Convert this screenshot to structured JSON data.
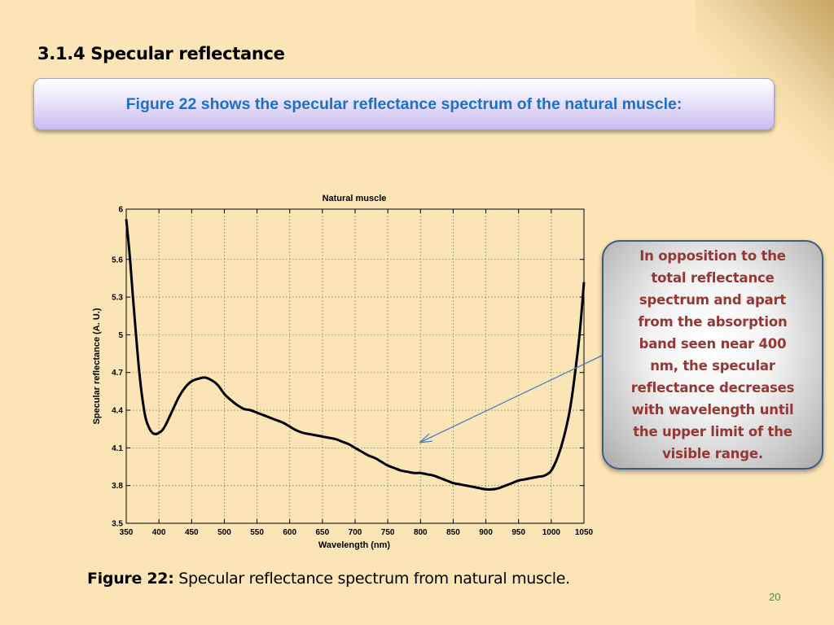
{
  "slide": {
    "title": "3.1.4 Specular reflectance",
    "banner_text": "Figure 22 shows the specular reflectance spectrum of the natural muscle:",
    "callout_text": "In opposition to the total reflectance spectrum and apart from the absorption band seen near 400 nm, the specular reflectance decreases with wavelength until the upper limit of the visible range.",
    "caption_label": "Figure 22:",
    "caption_text": " Specular reflectance spectrum from natural muscle.",
    "page_number": "20"
  },
  "colors": {
    "background": "#fbe5b6",
    "banner_text": "#1f6fc8",
    "callout_text": "#953735",
    "arrow": "#4f7fc0",
    "curve": "#000000"
  },
  "chart_data": {
    "type": "line",
    "title": "Natural muscle",
    "xlabel": "Wavelength (nm)",
    "ylabel": "Specular reflectance (A. U.)",
    "xlim": [
      350,
      1050
    ],
    "ylim": [
      3.5,
      6
    ],
    "xticks": [
      350,
      400,
      450,
      500,
      550,
      600,
      650,
      700,
      750,
      800,
      850,
      900,
      950,
      1000,
      1050
    ],
    "yticks": [
      "3.5",
      "3.8",
      "4.1",
      "4.4",
      "4.7",
      "5",
      "5.3",
      "5.6",
      "6"
    ],
    "grid": true,
    "series": [
      {
        "x": [
          350,
          355,
          360,
          365,
          370,
          375,
          380,
          385,
          390,
          395,
          400,
          405,
          410,
          420,
          430,
          440,
          450,
          460,
          470,
          480,
          490,
          500,
          510,
          520,
          530,
          540,
          550,
          560,
          570,
          580,
          590,
          600,
          610,
          620,
          630,
          640,
          650,
          660,
          670,
          680,
          690,
          700,
          710,
          720,
          730,
          740,
          750,
          760,
          770,
          780,
          790,
          800,
          810,
          820,
          830,
          840,
          850,
          860,
          870,
          880,
          890,
          900,
          910,
          920,
          930,
          940,
          950,
          960,
          970,
          980,
          990,
          1000,
          1010,
          1020,
          1030,
          1040,
          1045,
          1050
        ],
        "y": [
          5.92,
          5.65,
          5.32,
          5.0,
          4.7,
          4.48,
          4.33,
          4.26,
          4.22,
          4.21,
          4.22,
          4.24,
          4.28,
          4.39,
          4.5,
          4.58,
          4.63,
          4.65,
          4.66,
          4.64,
          4.6,
          4.53,
          4.48,
          4.44,
          4.41,
          4.4,
          4.38,
          4.36,
          4.34,
          4.32,
          4.3,
          4.27,
          4.24,
          4.22,
          4.21,
          4.2,
          4.19,
          4.18,
          4.17,
          4.15,
          4.13,
          4.1,
          4.07,
          4.04,
          4.02,
          3.99,
          3.96,
          3.94,
          3.92,
          3.91,
          3.9,
          3.9,
          3.89,
          3.88,
          3.86,
          3.84,
          3.82,
          3.81,
          3.8,
          3.79,
          3.78,
          3.77,
          3.77,
          3.78,
          3.8,
          3.82,
          3.84,
          3.85,
          3.86,
          3.87,
          3.88,
          3.92,
          4.03,
          4.2,
          4.45,
          4.85,
          5.1,
          5.42
        ]
      }
    ]
  }
}
